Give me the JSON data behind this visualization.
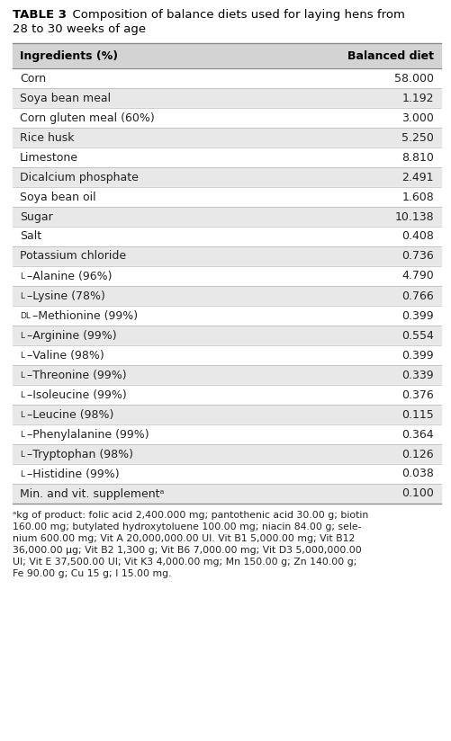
{
  "title_bold": "TABLE 3",
  "title_rest": "Composition of balance diets used for laying hens from\n28 to 30 weeks of age",
  "col1_header": "Ingredients (%)",
  "col2_header": "Balanced diet",
  "rows": [
    {
      "ingredient": "Corn",
      "value": "58.000",
      "shaded": false,
      "prefix": ""
    },
    {
      "ingredient": "Soya bean meal",
      "value": "1.192",
      "shaded": true,
      "prefix": ""
    },
    {
      "ingredient": "Corn gluten meal (60%)",
      "value": "3.000",
      "shaded": false,
      "prefix": ""
    },
    {
      "ingredient": "Rice husk",
      "value": "5.250",
      "shaded": true,
      "prefix": ""
    },
    {
      "ingredient": "Limestone",
      "value": "8.810",
      "shaded": false,
      "prefix": ""
    },
    {
      "ingredient": "Dicalcium phosphate",
      "value": "2.491",
      "shaded": true,
      "prefix": ""
    },
    {
      "ingredient": "Soya bean oil",
      "value": "1.608",
      "shaded": false,
      "prefix": ""
    },
    {
      "ingredient": "Sugar",
      "value": "10.138",
      "shaded": true,
      "prefix": ""
    },
    {
      "ingredient": "Salt",
      "value": "0.408",
      "shaded": false,
      "prefix": ""
    },
    {
      "ingredient": "Potassium chloride",
      "value": "0.736",
      "shaded": true,
      "prefix": ""
    },
    {
      "ingredient": "Alanine (96%)",
      "value": "4.790",
      "shaded": false,
      "prefix": "L"
    },
    {
      "ingredient": "Lysine (78%)",
      "value": "0.766",
      "shaded": true,
      "prefix": "L"
    },
    {
      "ingredient": "Methionine (99%)",
      "value": "0.399",
      "shaded": false,
      "prefix": "DL"
    },
    {
      "ingredient": "Arginine (99%)",
      "value": "0.554",
      "shaded": true,
      "prefix": "L"
    },
    {
      "ingredient": "Valine (98%)",
      "value": "0.399",
      "shaded": false,
      "prefix": "L"
    },
    {
      "ingredient": "Threonine (99%)",
      "value": "0.339",
      "shaded": true,
      "prefix": "L"
    },
    {
      "ingredient": "Isoleucine (99%)",
      "value": "0.376",
      "shaded": false,
      "prefix": "L"
    },
    {
      "ingredient": "Leucine (98%)",
      "value": "0.115",
      "shaded": true,
      "prefix": "L"
    },
    {
      "ingredient": "Phenylalanine (99%)",
      "value": "0.364",
      "shaded": false,
      "prefix": "L"
    },
    {
      "ingredient": "Tryptophan (98%)",
      "value": "0.126",
      "shaded": true,
      "prefix": "L"
    },
    {
      "ingredient": "Histidine (99%)",
      "value": "0.038",
      "shaded": false,
      "prefix": "L"
    },
    {
      "ingredient": "Min. and vit. supplementᵃ",
      "value": "0.100",
      "shaded": true,
      "prefix": ""
    }
  ],
  "footnote_lines": [
    "ᵃkg of product: folic acid 2,400.000 mg; pantothenic acid 30.00 g; biotin",
    "160.00 mg; butylated hydroxytoluene 100.00 mg; niacin 84.00 g; sele-",
    "nium 600.00 mg; Vit A 20,000,000.00 UI. Vit B1 5,000.00 mg; Vit B12",
    "36,000.00 μg; Vit B2 1,300 g; Vit B6 7,000.00 mg; Vit D3 5,000,000.00",
    "UI; Vit E 37,500.00 UI; Vit K3 4,000.00 mg; Mn 150.00 g; Zn 140.00 g;",
    "Fe 90.00 g; Cu 15 g; I 15.00 mg."
  ],
  "header_bg": "#d3d3d3",
  "shaded_bg": "#e8e8e8",
  "white_bg": "#ffffff",
  "line_color": "#aaaaaa",
  "strong_line_color": "#888888"
}
